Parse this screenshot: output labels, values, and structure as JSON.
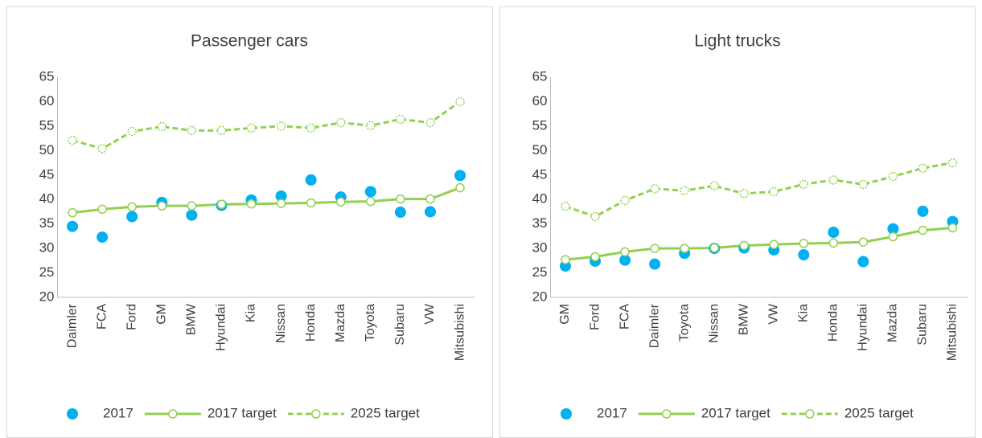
{
  "chart_data": [
    {
      "type": "line",
      "title": "Passenger cars",
      "categories": [
        "Daimler",
        "FCA",
        "Ford",
        "GM",
        "BMW",
        "Hyundai",
        "Kia",
        "Nissan",
        "Honda",
        "Mazda",
        "Toyota",
        "Subaru",
        "VW",
        "Mitsubishi"
      ],
      "ylim": [
        20,
        65
      ],
      "yticks": [
        20,
        25,
        30,
        35,
        40,
        45,
        50,
        55,
        60,
        65
      ],
      "grid": false,
      "legend": "bottom",
      "series": [
        {
          "name": "2017",
          "color": "#00b0f0",
          "line": "none",
          "values": [
            34.5,
            32.3,
            36.5,
            39.4,
            36.8,
            38.8,
            39.9,
            40.7,
            44,
            40.5,
            41.6,
            37.4,
            37.5,
            44.9
          ]
        },
        {
          "name": "2017 target",
          "color": "#92d050",
          "line": "solid",
          "values": [
            37.3,
            38,
            38.5,
            38.7,
            38.7,
            39,
            39.1,
            39.2,
            39.3,
            39.5,
            39.6,
            40.1,
            40.1,
            42.4
          ]
        },
        {
          "name": "2025 target",
          "color": "#92d050",
          "line": "dashed",
          "values": [
            52.1,
            50.4,
            53.9,
            54.9,
            54.1,
            54.1,
            54.6,
            55,
            54.6,
            55.7,
            55.1,
            56.4,
            55.7,
            60
          ]
        }
      ]
    },
    {
      "type": "line",
      "title": "Light trucks",
      "categories": [
        "GM",
        "Ford",
        "FCA",
        "Daimler",
        "Toyota",
        "Nissan",
        "BMW",
        "VW",
        "Kia",
        "Honda",
        "Hyundai",
        "Mazda",
        "Subaru",
        "Mitsubishi"
      ],
      "ylim": [
        20,
        65
      ],
      "yticks": [
        20,
        25,
        30,
        35,
        40,
        45,
        50,
        55,
        60,
        65
      ],
      "grid": false,
      "legend": "bottom",
      "series": [
        {
          "name": "2017",
          "color": "#00b0f0",
          "line": "none",
          "values": [
            26.4,
            27.4,
            27.6,
            26.8,
            29,
            30,
            30.1,
            29.7,
            28.7,
            33.3,
            27.3,
            34,
            37.6,
            35.5
          ]
        },
        {
          "name": "2017 target",
          "color": "#92d050",
          "line": "solid",
          "values": [
            27.7,
            28.3,
            29.3,
            30,
            30,
            30.1,
            30.6,
            30.8,
            31,
            31.1,
            31.3,
            32.4,
            33.7,
            34.2
          ]
        },
        {
          "name": "2025 target",
          "color": "#92d050",
          "line": "dashed",
          "values": [
            38.6,
            36.5,
            39.8,
            42.2,
            41.8,
            42.8,
            41.2,
            41.6,
            43.1,
            44,
            43.1,
            44.7,
            46.4,
            47.5
          ]
        }
      ]
    }
  ]
}
